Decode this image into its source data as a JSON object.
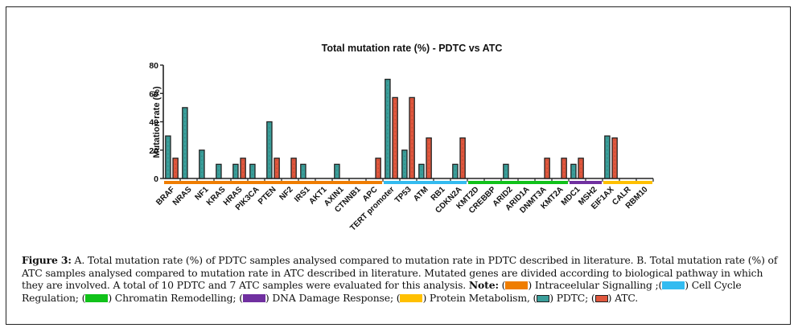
{
  "chart_data": {
    "type": "bar",
    "title": "Total mutation rate (%) - PDTC vs ATC",
    "xlabel": "",
    "ylabel": "Mutation rate (%)",
    "ylim": [
      0,
      80
    ],
    "yticks": [
      0,
      20,
      40,
      60,
      80
    ],
    "grid": false,
    "categories": [
      "BRAF",
      "NRAS",
      "NF1",
      "KRAS",
      "HRAS",
      "PIK3CA",
      "PTEN",
      "NF2",
      "IRS1",
      "AKT1",
      "AXIN1",
      "CTNNB1",
      "APC",
      "TERT promoter",
      "TP53",
      "ATM",
      "RB1",
      "CDKN2A",
      "KMT2D",
      "CREBBP",
      "ARID2",
      "ARID1A",
      "DNMT3A",
      "KMT2A",
      "MDC1",
      "MSH2",
      "EIF1AX",
      "CALR",
      "RBM10"
    ],
    "series": [
      {
        "name": "PDTC",
        "color": "#3a9e9a",
        "values": [
          30,
          50,
          20,
          10,
          10,
          10,
          40,
          0,
          10,
          0,
          10,
          0,
          0,
          70,
          20,
          10,
          0,
          10,
          0,
          0,
          10,
          0,
          0,
          0,
          10,
          0,
          30,
          0,
          0
        ]
      },
      {
        "name": "ATC",
        "color": "#e0573d",
        "values": [
          14.3,
          0,
          0,
          0,
          14.3,
          0,
          14.3,
          14.3,
          0,
          0,
          0,
          0,
          14.3,
          57.1,
          57.1,
          28.6,
          0,
          28.6,
          0,
          0,
          0,
          0,
          14.3,
          14.3,
          14.3,
          0,
          28.6,
          0,
          0
        ]
      }
    ],
    "pathway_groups": [
      {
        "name": "Intraceelular Signalling",
        "color": "#ef7d00",
        "start": 0,
        "end": 12
      },
      {
        "name": "Cell Cycle Regulation",
        "color": "#33bbf0",
        "start": 13,
        "end": 17
      },
      {
        "name": "Chromatin Remodelling",
        "color": "#11c21a",
        "start": 18,
        "end": 23
      },
      {
        "name": "DNA Damage Response",
        "color": "#7030a0",
        "start": 24,
        "end": 25
      },
      {
        "name": "Protein Metabolism",
        "color": "#ffc000",
        "start": 26,
        "end": 28
      }
    ]
  },
  "caption": {
    "label": "Figure 3:",
    "text1": " A. Total mutation rate (%) of PDTC samples analysed compared to mutation rate in PDTC described in literature. B. Total mutation rate (%) of ATC samples analysed compared to mutation rate in ATC described in literature. Mutated genes are divided according to biological pathway in which they are involved. A total of 10 PDTC and 7 ATC samples were evaluated for this analysis. ",
    "note_label": "Note:",
    "legend": [
      {
        "prefix": " (",
        "suffix": ") Intraceelular Signalling ;(",
        "color": "#ef7d00"
      },
      {
        "prefix": "",
        "suffix": ") Cell Cycle Regulation; (",
        "color": "#33bbf0"
      },
      {
        "prefix": "",
        "suffix": ") Chromatin Remodelling; (",
        "color": "#11c21a"
      },
      {
        "prefix": "",
        "suffix": ") DNA Damage Response; (",
        "color": "#7030a0"
      },
      {
        "prefix": "",
        "suffix": ") Protein Metabolism, (",
        "color": "#ffc000"
      }
    ],
    "pdtc_suffix": ") PDTC; (",
    "atc_suffix": ") ATC."
  }
}
